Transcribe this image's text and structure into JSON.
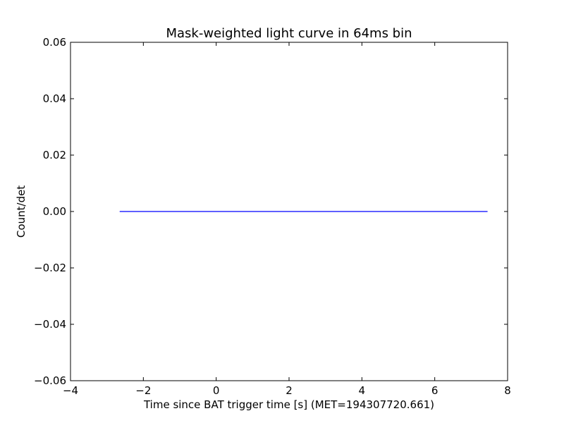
{
  "chart_data": {
    "type": "line",
    "title": "Mask-weighted light curve in 64ms bin",
    "xlabel": "Time since BAT trigger time [s] (MET=194307720.661)",
    "ylabel": "Count/det",
    "xlim": [
      -4,
      8
    ],
    "ylim": [
      -0.06,
      0.06
    ],
    "xticks": [
      -4,
      -2,
      0,
      2,
      4,
      6,
      8
    ],
    "xtick_labels": [
      "−4",
      "−2",
      "0",
      "2",
      "4",
      "6",
      "8"
    ],
    "yticks": [
      -0.06,
      -0.04,
      -0.02,
      0.0,
      0.02,
      0.04,
      0.06
    ],
    "ytick_labels": [
      "−0.06",
      "−0.04",
      "−0.02",
      "0.00",
      "0.02",
      "0.04",
      "0.06"
    ],
    "grid": false,
    "series": [
      {
        "color": "#0000ff",
        "x": [
          -2.65,
          7.45
        ],
        "y": [
          0.0,
          0.0
        ]
      }
    ]
  }
}
